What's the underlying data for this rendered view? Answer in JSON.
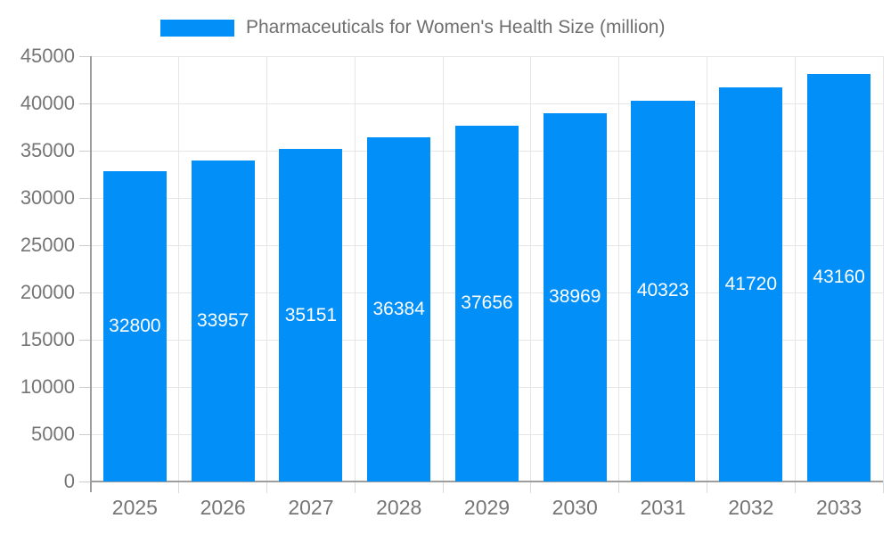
{
  "legend": {
    "label": "Pharmaceuticals for Women's Health Size (million)"
  },
  "chart_data": {
    "type": "bar",
    "title": "Pharmaceuticals for Women's Health Size (million)",
    "categories": [
      "2025",
      "2026",
      "2027",
      "2028",
      "2029",
      "2030",
      "2031",
      "2032",
      "2033"
    ],
    "values": [
      32800,
      33957,
      35151,
      36384,
      37656,
      38969,
      40323,
      41720,
      43160
    ],
    "xlabel": "",
    "ylabel": "",
    "ylim": [
      0,
      45000
    ],
    "ytick_step": 5000,
    "ytick_labels": [
      "0",
      "5000",
      "10000",
      "15000",
      "20000",
      "25000",
      "30000",
      "35000",
      "40000",
      "45000"
    ],
    "grid": true,
    "legend_position": "top",
    "value_labels_shown": true,
    "colors": {
      "bar": "#0290f8",
      "value_label": "#ffffff",
      "grid": "#e6e6e6",
      "axis": "#9e9e9e",
      "tick": "#cccccc",
      "tick_label": "#757575",
      "legend_text": "#6f6f6f",
      "background": "#ffffff"
    }
  }
}
